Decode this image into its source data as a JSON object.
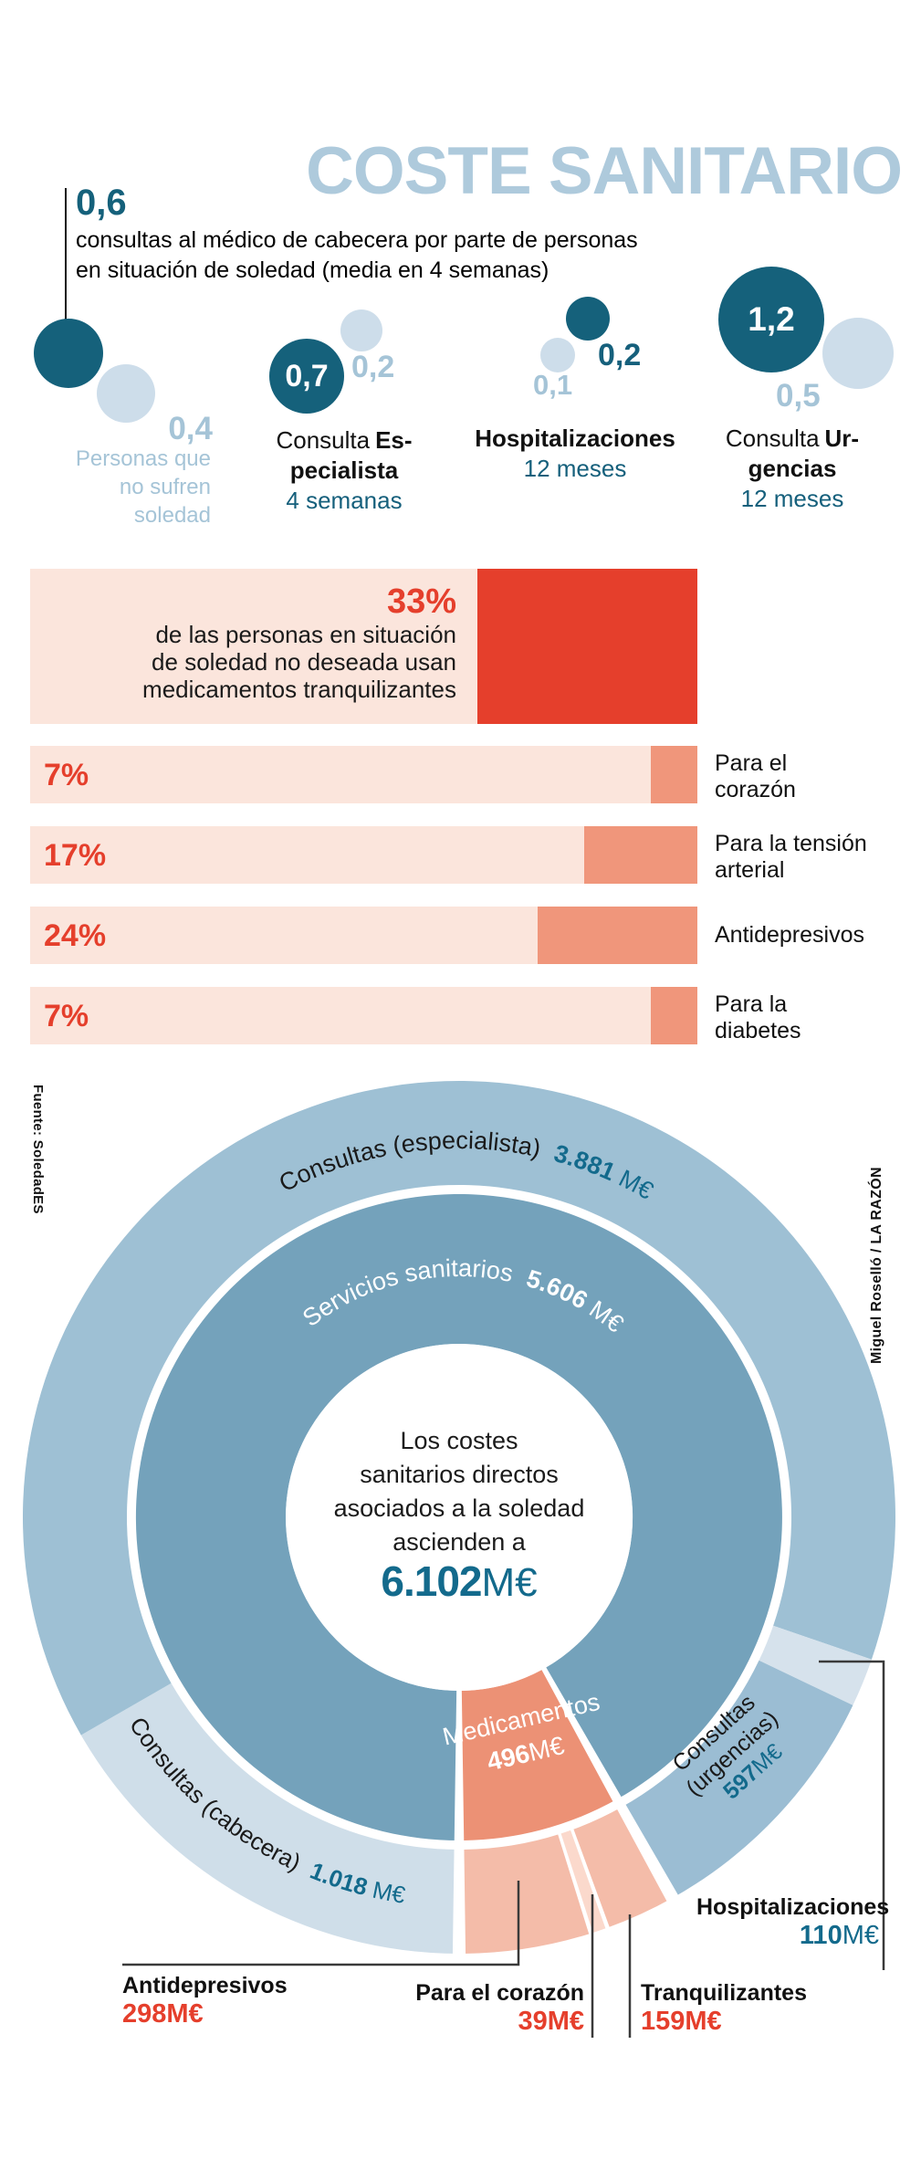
{
  "title": "COSTE SANITARIO",
  "intro": {
    "value": "0,6",
    "lines": [
      "consultas al médico de cabecera por parte de personas",
      "en situación de soledad (media en 4 semanas)"
    ]
  },
  "bubbles": {
    "groups": [
      {
        "dark": "0,6",
        "light": "0,4",
        "caption": "Personas que no sufren soledad"
      },
      {
        "dark": "0,7",
        "light": "0,2",
        "label_pre": "Consulta",
        "label_bold": "Es-",
        "label_line2": "pecialista",
        "period": "4 semanas"
      },
      {
        "dark": "0,2",
        "light": "0,1",
        "label_line1": "Hospitalizaciones",
        "period": "12 meses"
      },
      {
        "dark": "1,2",
        "light": "0,5",
        "label_pre": "Consulta",
        "label_bold": "Ur-",
        "label_line2": "gencias",
        "period": "12 meses"
      }
    ]
  },
  "med_bars": {
    "headline": {
      "pct": "33%",
      "lines": [
        "de las personas en situación",
        "de soledad no deseada usan",
        "medicamentos tranquilizantes"
      ]
    },
    "rows": [
      {
        "pct": "7%",
        "label": "Para el corazón"
      },
      {
        "pct": "17%",
        "label": "Para la tensión arterial"
      },
      {
        "pct": "24%",
        "label": "Antidepresivos"
      },
      {
        "pct": "7%",
        "label": "Para la diabetes"
      }
    ]
  },
  "credits": {
    "source": "Fuente: SoledadES",
    "author": "Miguel Roselló / LA RAZÓN"
  },
  "colors": {
    "title_blue": "#aecadc",
    "dark_bubble": "#15617b",
    "light_bubble": "#cdddea",
    "accent_red": "#e53f2c",
    "bar_bg": "#fbe5dc",
    "bar_fill": "#f0967b",
    "number_teal": "#136a8c"
  },
  "chart_data": [
    {
      "type": "bubble",
      "title": "consultas al médico de cabecera por parte de personas en situación de soledad (media en 4 semanas)",
      "series": [
        "Personas en situación de soledad",
        "Personas que no sufren soledad"
      ],
      "groups": [
        {
          "label": "Consulta médico de cabecera (4 semanas)",
          "soledad": 0.6,
          "no_soledad": 0.4
        },
        {
          "label": "Consulta Especialista (4 semanas)",
          "soledad": 0.7,
          "no_soledad": 0.2
        },
        {
          "label": "Hospitalizaciones (12 meses)",
          "soledad": 0.2,
          "no_soledad": 0.1
        },
        {
          "label": "Consulta Urgencias (12 meses)",
          "soledad": 1.2,
          "no_soledad": 0.5
        }
      ]
    },
    {
      "type": "bar",
      "title": "33% de las personas en situación de soledad no deseada usan medicamentos tranquilizantes",
      "categories": [
        "Medicamentos tranquilizantes",
        "Para el corazón",
        "Para la tensión arterial",
        "Antidepresivos",
        "Para la diabetes"
      ],
      "values": [
        33,
        7,
        17,
        24,
        7
      ],
      "unit": "%",
      "xlim": [
        0,
        100
      ]
    },
    {
      "type": "donut",
      "unit": "M€",
      "start_angle_deg": 180,
      "clockwise": true,
      "center": {
        "lines": [
          "Los costes",
          "sanitarios directos",
          "asociados a la soledad",
          "ascienden a"
        ],
        "total": 6102,
        "total_display": "6.102"
      },
      "inner": [
        {
          "id": "servicios",
          "label": "Servicios sanitarios",
          "value": 5606,
          "display": "5.606",
          "color": "#74a2bb"
        },
        {
          "id": "medicamentos",
          "label": "Medicamentos",
          "value": 496,
          "display": "496",
          "color": "#ec9175"
        }
      ],
      "outer": [
        {
          "id": "cabecera",
          "label": "Consultas (cabecera)",
          "value": 1018,
          "display": "1.018",
          "color": "#cfdee9"
        },
        {
          "id": "especialista",
          "label": "Consultas (especialista)",
          "value": 3881,
          "display": "3.881",
          "color": "#9ec0d4"
        },
        {
          "id": "hospitalizaciones",
          "label": "Hospitalizaciones",
          "value": 110,
          "display": "110",
          "color": "#d6e2ec"
        },
        {
          "id": "urgencias",
          "label": "Consultas (urgencias)",
          "label_lines": [
            "Consultas",
            "(urgencias)"
          ],
          "value": 597,
          "display": "597",
          "color": "#9bbdd3"
        },
        {
          "id": "tranquilizantes",
          "label": "Tranquilizantes",
          "value": 159,
          "display": "159",
          "color": "#f4bca9"
        },
        {
          "id": "corazon",
          "label": "Para el corazón",
          "value": 39,
          "display": "39",
          "color": "#fbd9cc"
        },
        {
          "id": "antidepresivos",
          "label": "Antidepresivos",
          "value": 298,
          "display": "298",
          "color": "#f4bca9"
        }
      ]
    }
  ]
}
